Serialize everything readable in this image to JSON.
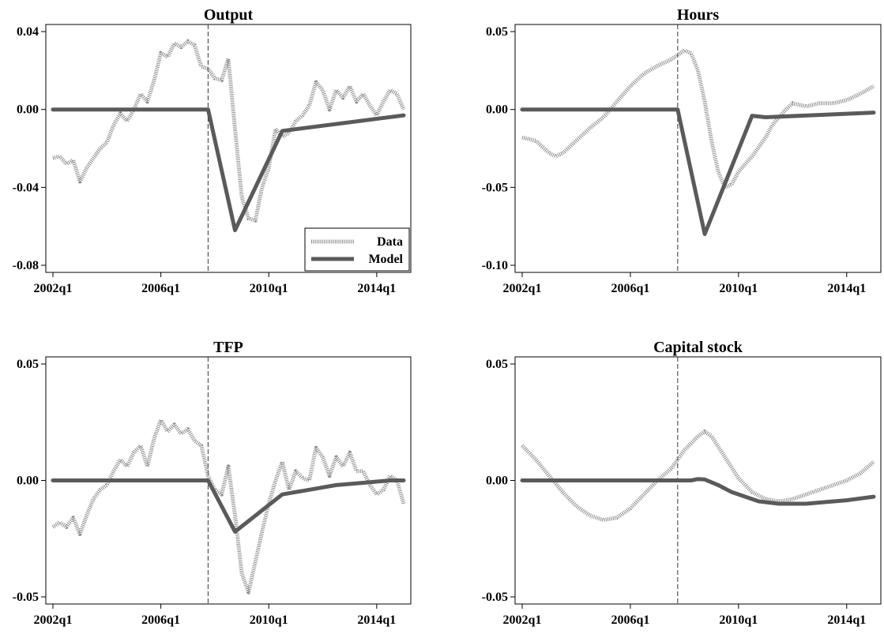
{
  "chart_data": [
    {
      "type": "line",
      "title": "Output",
      "ylim": [
        -0.08,
        0.04
      ],
      "yticks": [
        0.04,
        0.0,
        -0.04,
        -0.08
      ],
      "ytick_labels": [
        "0.04",
        "0.00",
        "-0.04",
        "-0.08"
      ],
      "xlim": [
        2002.0,
        2015.0
      ],
      "xticks": [
        2002,
        2006,
        2010,
        2014
      ],
      "xtick_labels": [
        "2002q1",
        "2006q1",
        "2010q1",
        "2014q1"
      ],
      "vline": 2007.75,
      "grid": false,
      "legend": {
        "placement": "bottom-right",
        "entries": [
          "Data",
          "Model"
        ]
      },
      "series": [
        {
          "name": "Data",
          "style": "dotted",
          "color": "#8c8c8c",
          "x": [
            2002.0,
            2002.25,
            2002.5,
            2002.75,
            2003.0,
            2003.25,
            2003.5,
            2003.75,
            2004.0,
            2004.25,
            2004.5,
            2004.75,
            2005.0,
            2005.25,
            2005.5,
            2005.75,
            2006.0,
            2006.25,
            2006.5,
            2006.75,
            2007.0,
            2007.25,
            2007.5,
            2007.75,
            2008.0,
            2008.25,
            2008.5,
            2008.75,
            2009.0,
            2009.25,
            2009.5,
            2009.75,
            2010.0,
            2010.25,
            2010.5,
            2010.75,
            2011.0,
            2011.25,
            2011.5,
            2011.75,
            2012.0,
            2012.25,
            2012.5,
            2012.75,
            2013.0,
            2013.25,
            2013.5,
            2013.75,
            2014.0,
            2014.25,
            2014.5,
            2014.75,
            2015.0
          ],
          "y": [
            -0.025,
            -0.024,
            -0.028,
            -0.026,
            -0.037,
            -0.03,
            -0.025,
            -0.02,
            -0.017,
            -0.008,
            -0.002,
            -0.006,
            0.0,
            0.008,
            0.004,
            0.015,
            0.029,
            0.027,
            0.034,
            0.032,
            0.035,
            0.033,
            0.022,
            0.021,
            0.016,
            0.015,
            0.026,
            -0.01,
            -0.045,
            -0.056,
            -0.057,
            -0.04,
            -0.03,
            -0.01,
            -0.014,
            -0.012,
            -0.006,
            -0.003,
            0.002,
            0.014,
            0.01,
            0.0,
            0.01,
            0.006,
            0.012,
            0.004,
            0.008,
            0.002,
            -0.003,
            0.004,
            0.01,
            0.008,
            0.0
          ]
        },
        {
          "name": "Model",
          "style": "solid",
          "color": "#5a5a5a",
          "x": [
            2002.0,
            2007.75,
            2008.75,
            2010.5,
            2015.0
          ],
          "y": [
            0.0,
            0.0,
            -0.062,
            -0.011,
            -0.003
          ]
        }
      ]
    },
    {
      "type": "line",
      "title": "Hours",
      "ylim": [
        -0.1,
        0.05
      ],
      "yticks": [
        0.05,
        0.0,
        -0.05,
        -0.1
      ],
      "ytick_labels": [
        "0.05",
        "0.00",
        "-0.05",
        "-0.10"
      ],
      "xlim": [
        2002.0,
        2015.0
      ],
      "xticks": [
        2002,
        2006,
        2010,
        2014
      ],
      "xtick_labels": [
        "2002q1",
        "2006q1",
        "2010q1",
        "2014q1"
      ],
      "vline": 2007.75,
      "grid": false,
      "series": [
        {
          "name": "Data",
          "style": "dotted",
          "color": "#8c8c8c",
          "x": [
            2002.0,
            2002.5,
            2003.0,
            2003.25,
            2003.5,
            2004.0,
            2004.5,
            2005.0,
            2005.5,
            2006.0,
            2006.5,
            2007.0,
            2007.5,
            2007.75,
            2008.0,
            2008.25,
            2008.5,
            2008.75,
            2009.0,
            2009.25,
            2009.5,
            2009.75,
            2010.0,
            2010.5,
            2011.0,
            2011.25,
            2011.5,
            2011.75,
            2012.0,
            2012.5,
            2013.0,
            2013.5,
            2014.0,
            2014.5,
            2015.0
          ],
          "y": [
            -0.018,
            -0.02,
            -0.028,
            -0.03,
            -0.028,
            -0.02,
            -0.012,
            -0.005,
            0.005,
            0.015,
            0.023,
            0.028,
            0.032,
            0.035,
            0.038,
            0.036,
            0.025,
            0.005,
            -0.02,
            -0.04,
            -0.05,
            -0.048,
            -0.04,
            -0.03,
            -0.018,
            -0.01,
            -0.005,
            0.0,
            0.004,
            0.002,
            0.004,
            0.004,
            0.006,
            0.01,
            0.015
          ]
        },
        {
          "name": "Model",
          "style": "solid",
          "color": "#5a5a5a",
          "x": [
            2002.0,
            2007.75,
            2008.75,
            2010.5,
            2011.0,
            2015.0
          ],
          "y": [
            0.0,
            0.0,
            -0.08,
            -0.004,
            -0.005,
            -0.002
          ]
        }
      ]
    },
    {
      "type": "line",
      "title": "TFP",
      "ylim": [
        -0.05,
        0.05
      ],
      "yticks": [
        0.05,
        0.0,
        -0.05
      ],
      "ytick_labels": [
        "0.05",
        "0.00",
        "-0.05"
      ],
      "xlim": [
        2002.0,
        2015.0
      ],
      "xticks": [
        2002,
        2006,
        2010,
        2014
      ],
      "xtick_labels": [
        "2002q1",
        "2006q1",
        "2010q1",
        "2014q1"
      ],
      "vline": 2007.75,
      "grid": false,
      "series": [
        {
          "name": "Data",
          "style": "dotted",
          "color": "#8c8c8c",
          "x": [
            2002.0,
            2002.25,
            2002.5,
            2002.75,
            2003.0,
            2003.25,
            2003.5,
            2003.75,
            2004.0,
            2004.25,
            2004.5,
            2004.75,
            2005.0,
            2005.25,
            2005.5,
            2005.75,
            2006.0,
            2006.25,
            2006.5,
            2006.75,
            2007.0,
            2007.25,
            2007.5,
            2007.75,
            2008.0,
            2008.25,
            2008.5,
            2008.75,
            2009.0,
            2009.25,
            2009.5,
            2009.75,
            2010.0,
            2010.25,
            2010.5,
            2010.75,
            2011.0,
            2011.25,
            2011.5,
            2011.75,
            2012.0,
            2012.25,
            2012.5,
            2012.75,
            2013.0,
            2013.25,
            2013.5,
            2013.75,
            2014.0,
            2014.25,
            2014.5,
            2014.75,
            2015.0
          ],
          "y": [
            -0.02,
            -0.018,
            -0.02,
            -0.016,
            -0.023,
            -0.015,
            -0.008,
            -0.004,
            -0.002,
            0.004,
            0.009,
            0.006,
            0.012,
            0.015,
            0.006,
            0.018,
            0.026,
            0.021,
            0.024,
            0.02,
            0.022,
            0.017,
            0.015,
            0.002,
            -0.004,
            -0.006,
            0.006,
            -0.015,
            -0.04,
            -0.048,
            -0.035,
            -0.022,
            -0.01,
            0.0,
            0.008,
            -0.004,
            0.004,
            0.001,
            0.0,
            0.014,
            0.01,
            0.002,
            0.01,
            0.006,
            0.012,
            0.004,
            0.004,
            -0.002,
            -0.006,
            -0.004,
            0.002,
            0.0,
            -0.01
          ]
        },
        {
          "name": "Model",
          "style": "solid",
          "color": "#5a5a5a",
          "x": [
            2002.0,
            2007.75,
            2008.75,
            2010.5,
            2011.5,
            2012.5,
            2013.5,
            2014.5,
            2015.0
          ],
          "y": [
            0.0,
            0.0,
            -0.022,
            -0.006,
            -0.004,
            -0.002,
            -0.001,
            0.0,
            0.0
          ]
        }
      ]
    },
    {
      "type": "line",
      "title": "Capital stock",
      "ylim": [
        -0.05,
        0.05
      ],
      "yticks": [
        0.05,
        0.0,
        -0.05
      ],
      "ytick_labels": [
        "0.05",
        "0.00",
        "-0.05"
      ],
      "xlim": [
        2002.0,
        2015.0
      ],
      "xticks": [
        2002,
        2006,
        2010,
        2014
      ],
      "xtick_labels": [
        "2002q1",
        "2006q1",
        "2010q1",
        "2014q1"
      ],
      "vline": 2007.75,
      "grid": false,
      "series": [
        {
          "name": "Data",
          "style": "dotted",
          "color": "#8c8c8c",
          "x": [
            2002.0,
            2002.5,
            2003.0,
            2003.5,
            2004.0,
            2004.5,
            2005.0,
            2005.5,
            2006.0,
            2006.5,
            2007.0,
            2007.5,
            2007.75,
            2008.0,
            2008.5,
            2008.75,
            2009.0,
            2009.5,
            2010.0,
            2010.5,
            2011.0,
            2011.5,
            2012.0,
            2012.5,
            2013.0,
            2013.5,
            2014.0,
            2014.5,
            2015.0
          ],
          "y": [
            0.015,
            0.009,
            0.002,
            -0.005,
            -0.011,
            -0.015,
            -0.017,
            -0.016,
            -0.012,
            -0.006,
            0.0,
            0.005,
            0.009,
            0.013,
            0.019,
            0.021,
            0.019,
            0.01,
            0.001,
            -0.005,
            -0.008,
            -0.009,
            -0.008,
            -0.006,
            -0.004,
            -0.002,
            0.0,
            0.003,
            0.008
          ]
        },
        {
          "name": "Model",
          "style": "solid",
          "color": "#5a5a5a",
          "x": [
            2002.0,
            2007.75,
            2008.25,
            2008.5,
            2008.75,
            2009.25,
            2009.75,
            2010.25,
            2010.75,
            2011.5,
            2012.0,
            2012.5,
            2013.0,
            2014.0,
            2015.0
          ],
          "y": [
            0.0,
            0.0,
            0.0,
            0.0006,
            0.0004,
            -0.002,
            -0.005,
            -0.007,
            -0.009,
            -0.01,
            -0.01,
            -0.01,
            -0.0095,
            -0.0085,
            -0.007
          ]
        }
      ]
    }
  ]
}
